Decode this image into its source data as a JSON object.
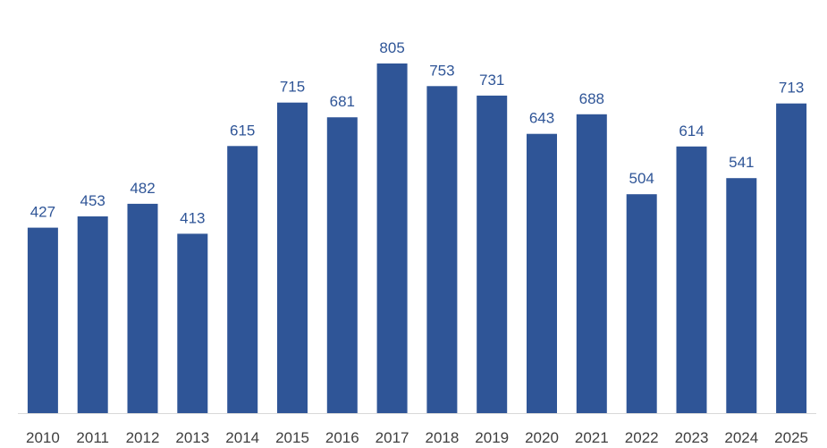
{
  "chart_data": {
    "type": "bar",
    "categories": [
      "2010",
      "2011",
      "2012",
      "2013",
      "2014",
      "2015",
      "2016",
      "2017",
      "2018",
      "2019",
      "2020",
      "2021",
      "2022",
      "2023",
      "2024",
      "2025"
    ],
    "values": [
      427,
      453,
      482,
      413,
      615,
      715,
      681,
      805,
      753,
      731,
      643,
      688,
      504,
      614,
      541,
      713
    ],
    "title": "",
    "xlabel": "",
    "ylabel": "",
    "ylim": [
      0,
      810
    ],
    "grid": false,
    "legend": "none",
    "data_labels": true,
    "colors": {
      "bar": "#2F5597",
      "label": "#2F5597",
      "tick": "#404040",
      "axis": "#D9D9D9"
    }
  }
}
